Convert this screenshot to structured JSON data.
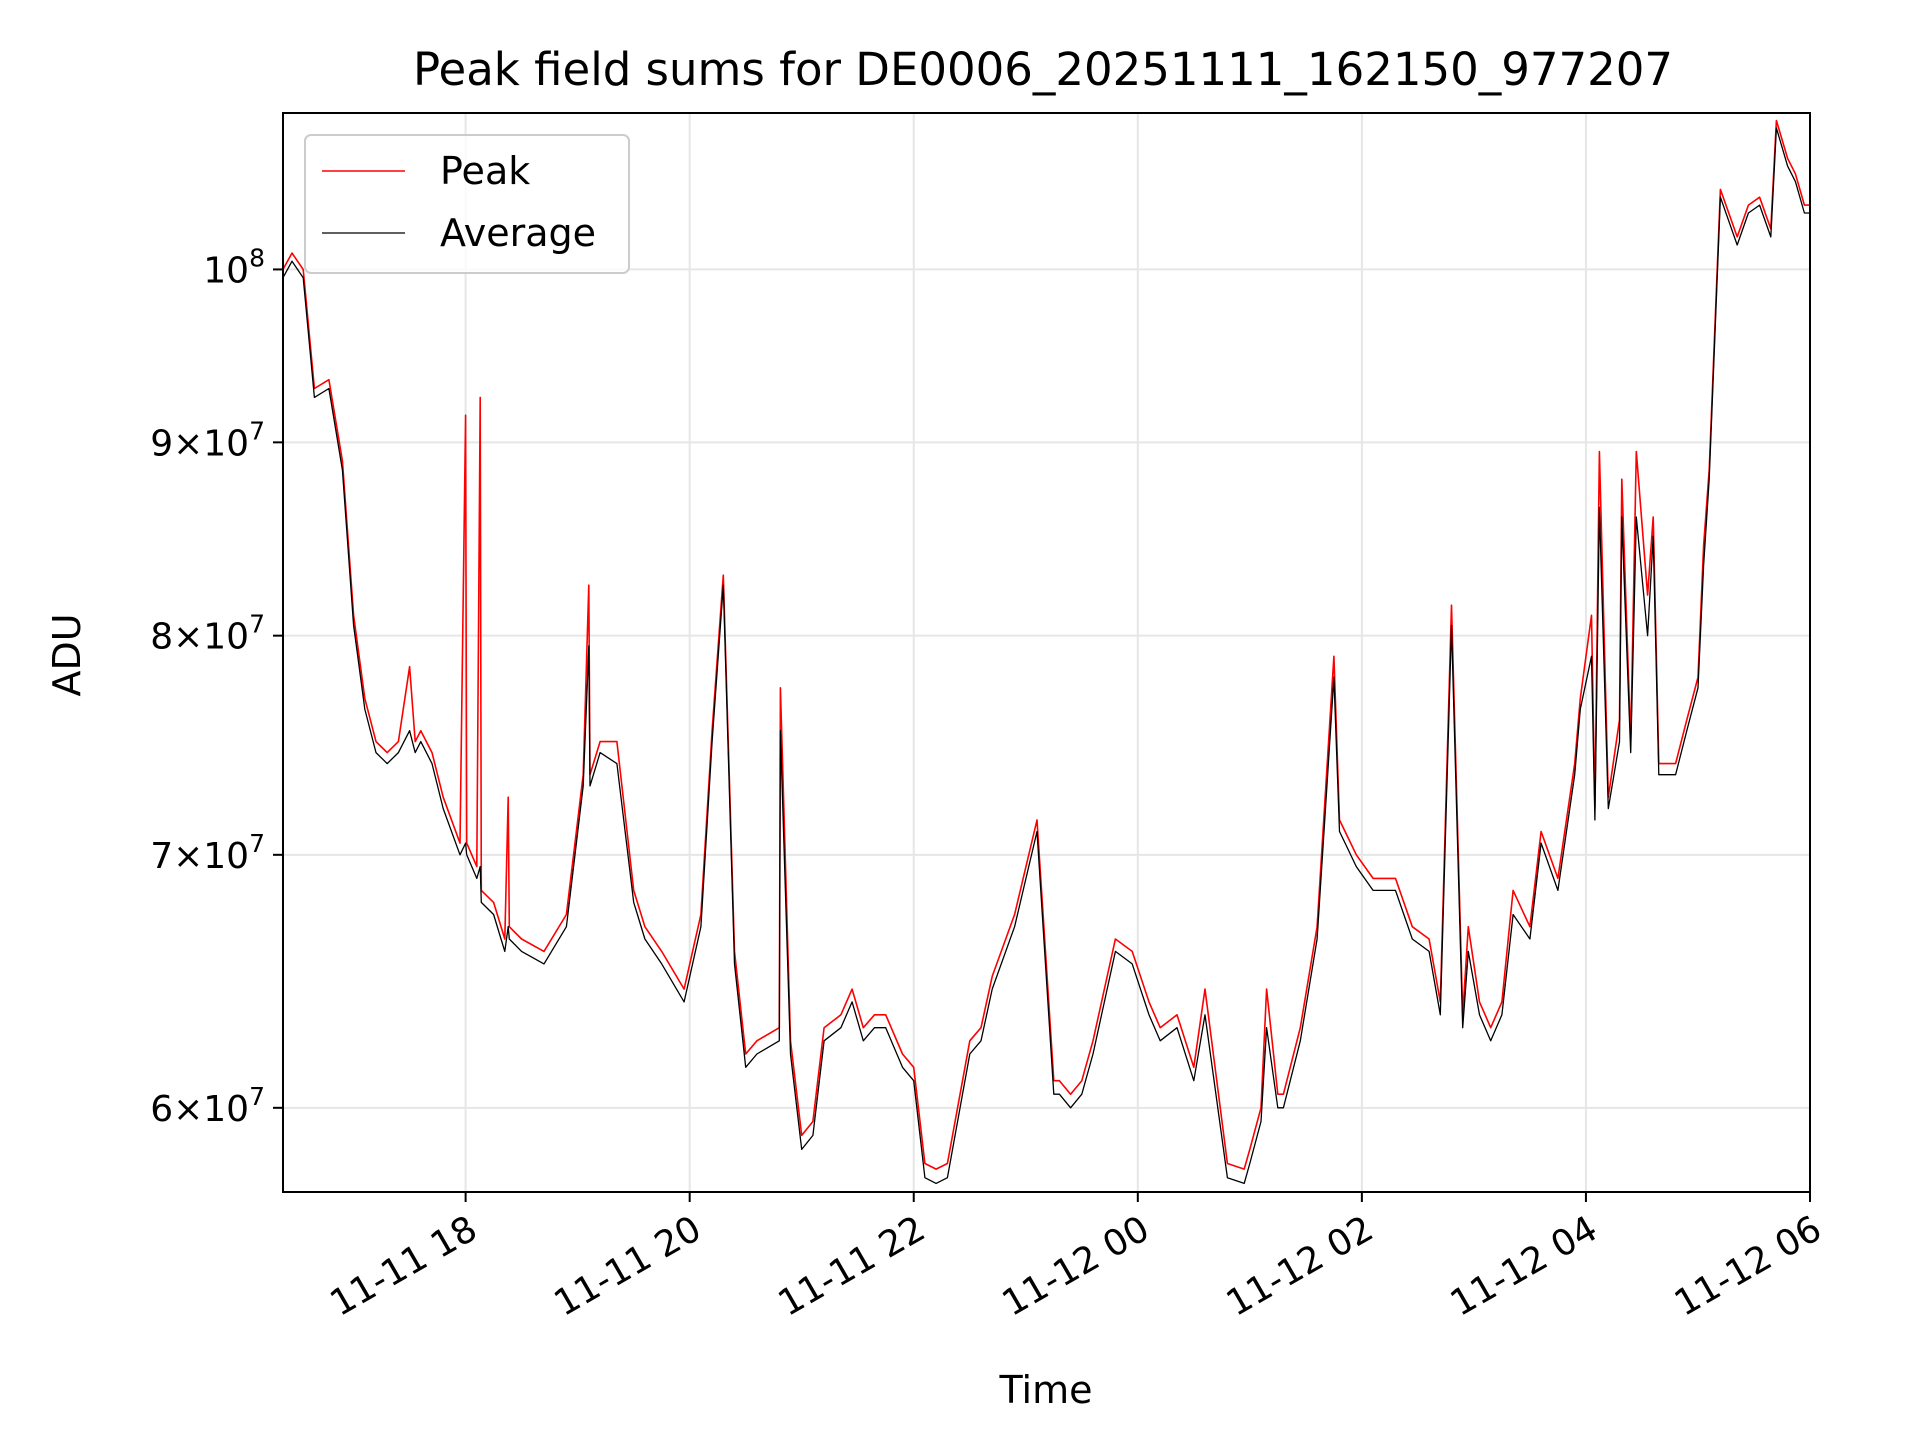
{
  "chart_data": {
    "type": "line",
    "title": "Peak field sums for DE0006_20251111_162150_977207",
    "xlabel": "Time",
    "ylabel": "ADU",
    "y_scale": "log",
    "x_unit": "hours since 2025-11-11 00:00",
    "xlim": [
      16.37,
      30.0
    ],
    "ylim": [
      57000000,
      110000000
    ],
    "grid": true,
    "legend_position": "upper-left",
    "x_ticks": [
      {
        "value": 18,
        "label": "11-11 18"
      },
      {
        "value": 20,
        "label": "11-11 20"
      },
      {
        "value": 22,
        "label": "11-11 22"
      },
      {
        "value": 24,
        "label": "11-12 00"
      },
      {
        "value": 26,
        "label": "11-12 02"
      },
      {
        "value": 28,
        "label": "11-12 04"
      },
      {
        "value": 30,
        "label": "11-12 06"
      }
    ],
    "y_ticks": [
      {
        "value": 60000000,
        "label_mantissa": "6",
        "label_base": "10",
        "label_exp": "7"
      },
      {
        "value": 70000000,
        "label_mantissa": "7",
        "label_base": "10",
        "label_exp": "7"
      },
      {
        "value": 80000000,
        "label_mantissa": "8",
        "label_base": "10",
        "label_exp": "7"
      },
      {
        "value": 90000000,
        "label_mantissa": "9",
        "label_base": "10",
        "label_exp": "7"
      },
      {
        "value": 100000000,
        "label_mantissa": "",
        "label_base": "10",
        "label_exp": "8"
      }
    ],
    "series": [
      {
        "name": "Peak",
        "color": "#ff0000",
        "x": [
          16.37,
          16.45,
          16.55,
          16.65,
          16.78,
          16.9,
          17.0,
          17.1,
          17.2,
          17.3,
          17.4,
          17.5,
          17.55,
          17.6,
          17.7,
          17.8,
          17.95,
          18.0,
          18.01,
          18.1,
          18.13,
          18.14,
          18.25,
          18.35,
          18.38,
          18.39,
          18.5,
          18.7,
          18.9,
          19.05,
          19.1,
          19.11,
          19.2,
          19.35,
          19.5,
          19.6,
          19.75,
          19.95,
          20.1,
          20.2,
          20.3,
          20.4,
          20.5,
          20.6,
          20.8,
          20.81,
          20.9,
          21.0,
          21.1,
          21.2,
          21.35,
          21.45,
          21.55,
          21.65,
          21.75,
          21.9,
          22.0,
          22.1,
          22.2,
          22.3,
          22.5,
          22.6,
          22.7,
          22.9,
          23.1,
          23.25,
          23.3,
          23.4,
          23.5,
          23.6,
          23.8,
          23.95,
          24.1,
          24.2,
          24.35,
          24.5,
          24.6,
          24.8,
          24.95,
          25.0,
          25.1,
          25.15,
          25.25,
          25.3,
          25.45,
          25.6,
          25.75,
          25.8,
          25.85,
          25.95,
          26.1,
          26.3,
          26.45,
          26.6,
          26.7,
          26.8,
          26.9,
          26.95,
          27.05,
          27.15,
          27.25,
          27.35,
          27.5,
          27.6,
          27.75,
          27.9,
          27.95,
          28.05,
          28.08,
          28.12,
          28.2,
          28.3,
          28.32,
          28.4,
          28.45,
          28.55,
          28.6,
          28.65,
          28.8,
          28.9,
          29.0,
          29.05,
          29.1,
          29.2,
          29.35,
          29.45,
          29.55,
          29.65,
          29.7,
          29.8,
          29.87,
          29.95,
          30.0
        ],
        "y": [
          100000000,
          101000000,
          100000000,
          93000000,
          93500000,
          89000000,
          81000000,
          77000000,
          75000000,
          74500000,
          75000000,
          78500000,
          75000000,
          75500000,
          74500000,
          72500000,
          70500000,
          91500000,
          70500000,
          69500000,
          92500000,
          68500000,
          68000000,
          66500000,
          72500000,
          67000000,
          66500000,
          66000000,
          67500000,
          73500000,
          82500000,
          73500000,
          75000000,
          75000000,
          68500000,
          67000000,
          66000000,
          64500000,
          67500000,
          75500000,
          83000000,
          66000000,
          62000000,
          62500000,
          63000000,
          77500000,
          62500000,
          59000000,
          59500000,
          63000000,
          63500000,
          64500000,
          63000000,
          63500000,
          63500000,
          62000000,
          61500000,
          58000000,
          57800000,
          58000000,
          62500000,
          63000000,
          65000000,
          67500000,
          71500000,
          61000000,
          61000000,
          60500000,
          61000000,
          62500000,
          66500000,
          66000000,
          64000000,
          63000000,
          63500000,
          61500000,
          64500000,
          58000000,
          57800000,
          58500000,
          60000000,
          64500000,
          60500000,
          60500000,
          63000000,
          67000000,
          79000000,
          71500000,
          71000000,
          70000000,
          69000000,
          69000000,
          67000000,
          66500000,
          64000000,
          81500000,
          63500000,
          67000000,
          64000000,
          63000000,
          64000000,
          68500000,
          67000000,
          71000000,
          69000000,
          74000000,
          77000000,
          81000000,
          72000000,
          89500000,
          72500000,
          76000000,
          88000000,
          75000000,
          89500000,
          82000000,
          86000000,
          74000000,
          74000000,
          76000000,
          78000000,
          84500000,
          88500000,
          105000000,
          102000000,
          104000000,
          104500000,
          102500000,
          109500000,
          107000000,
          106000000,
          104000000,
          104000000
        ],
        "line_width": 1.6
      },
      {
        "name": "Average",
        "color": "#000000",
        "x": [
          16.37,
          16.45,
          16.55,
          16.65,
          16.78,
          16.9,
          17.0,
          17.1,
          17.2,
          17.3,
          17.4,
          17.5,
          17.55,
          17.6,
          17.7,
          17.8,
          17.95,
          18.0,
          18.01,
          18.1,
          18.13,
          18.14,
          18.25,
          18.35,
          18.38,
          18.39,
          18.5,
          18.7,
          18.9,
          19.05,
          19.1,
          19.11,
          19.2,
          19.35,
          19.5,
          19.6,
          19.75,
          19.95,
          20.1,
          20.2,
          20.3,
          20.4,
          20.5,
          20.6,
          20.8,
          20.81,
          20.9,
          21.0,
          21.1,
          21.2,
          21.35,
          21.45,
          21.55,
          21.65,
          21.75,
          21.9,
          22.0,
          22.1,
          22.2,
          22.3,
          22.5,
          22.6,
          22.7,
          22.9,
          23.1,
          23.25,
          23.3,
          23.4,
          23.5,
          23.6,
          23.8,
          23.95,
          24.1,
          24.2,
          24.35,
          24.5,
          24.6,
          24.8,
          24.95,
          25.0,
          25.1,
          25.15,
          25.25,
          25.3,
          25.45,
          25.6,
          25.75,
          25.8,
          25.85,
          25.95,
          26.1,
          26.3,
          26.45,
          26.6,
          26.7,
          26.8,
          26.9,
          26.95,
          27.05,
          27.15,
          27.25,
          27.35,
          27.5,
          27.6,
          27.75,
          27.9,
          27.95,
          28.05,
          28.08,
          28.12,
          28.2,
          28.3,
          28.32,
          28.4,
          28.45,
          28.55,
          28.6,
          28.65,
          28.8,
          28.9,
          29.0,
          29.05,
          29.1,
          29.2,
          29.35,
          29.45,
          29.55,
          29.65,
          29.7,
          29.8,
          29.87,
          29.95,
          30.0
        ],
        "y": [
          99500000,
          100500000,
          99500000,
          92500000,
          93000000,
          88500000,
          80500000,
          76500000,
          74500000,
          74000000,
          74500000,
          75500000,
          74500000,
          75000000,
          74000000,
          72000000,
          70000000,
          70500000,
          70000000,
          69000000,
          69500000,
          68000000,
          67500000,
          66000000,
          67000000,
          66500000,
          66000000,
          65500000,
          67000000,
          73000000,
          79500000,
          73000000,
          74500000,
          74000000,
          68000000,
          66500000,
          65500000,
          64000000,
          67000000,
          75000000,
          82500000,
          65500000,
          61500000,
          62000000,
          62500000,
          75500000,
          62000000,
          58500000,
          59000000,
          62500000,
          63000000,
          64000000,
          62500000,
          63000000,
          63000000,
          61500000,
          61000000,
          57500000,
          57300000,
          57500000,
          62000000,
          62500000,
          64500000,
          67000000,
          71000000,
          60500000,
          60500000,
          60000000,
          60500000,
          62000000,
          66000000,
          65500000,
          63500000,
          62500000,
          63000000,
          61000000,
          63500000,
          57500000,
          57300000,
          58000000,
          59500000,
          63000000,
          60000000,
          60000000,
          62500000,
          66500000,
          78000000,
          71000000,
          70500000,
          69500000,
          68500000,
          68500000,
          66500000,
          66000000,
          63500000,
          80500000,
          63000000,
          66000000,
          63500000,
          62500000,
          63500000,
          67500000,
          66500000,
          70500000,
          68500000,
          73500000,
          76500000,
          79000000,
          71500000,
          86500000,
          72000000,
          75000000,
          86000000,
          74500000,
          86000000,
          80000000,
          85000000,
          73500000,
          73500000,
          75500000,
          77500000,
          83500000,
          88000000,
          104500000,
          101500000,
          103500000,
          104000000,
          102000000,
          109000000,
          106500000,
          105500000,
          103500000,
          103500000
        ],
        "line_width": 1.3
      }
    ]
  }
}
